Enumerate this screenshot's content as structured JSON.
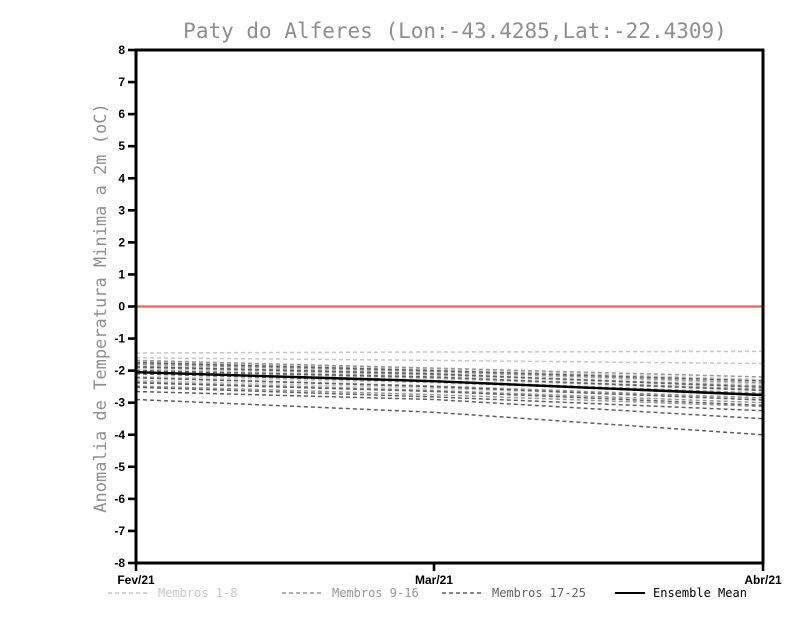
{
  "header": {
    "title": "Paty do Alferes (Lon:-43.4285,Lat:-22.4309)"
  },
  "colors": {
    "background": "#ffffff",
    "axis_frame": "#000000",
    "title_text": "#8e8e8e",
    "axis_label_text": "#909090",
    "tick_label_text": "#000000",
    "zero_line": "#f4615b",
    "members_1_8": "#c7c7c7",
    "members_9_16": "#969696",
    "members_17_25": "#5f5f5f",
    "ensemble_mean": "#000000"
  },
  "legend": {
    "items": [
      {
        "label": "Membros 1-8",
        "color": "#c7c7c7",
        "style": "dashed"
      },
      {
        "label": "Membros 9-16",
        "color": "#969696",
        "style": "dashed"
      },
      {
        "label": "Membros 17-25",
        "color": "#5f5f5f",
        "style": "dashed"
      },
      {
        "label": "Ensemble Mean",
        "color": "#000000",
        "style": "solid"
      }
    ]
  },
  "chart_data": {
    "type": "line",
    "title": "Paty do Alferes (Lon:-43.4285,Lat:-22.4309)",
    "xlabel": "",
    "ylabel": "Anomalia de Temperatura Minima a 2m (oC)",
    "x_tick_labels": [
      "Fev/21",
      "Mar/21",
      "Abr/21"
    ],
    "ylim": [
      -8,
      8
    ],
    "y_tick_step": 1,
    "grid": false,
    "legend_position": "bottom",
    "zero_line_y": 0,
    "zero_line_color": "#f4615b",
    "series": [
      {
        "name": "Membro 1",
        "group": "Membros 1-8",
        "values": [
          -1.45,
          -1.42,
          -1.4
        ]
      },
      {
        "name": "Membro 2",
        "group": "Membros 1-8",
        "values": [
          -1.6,
          -1.68,
          -1.78
        ]
      },
      {
        "name": "Membro 3",
        "group": "Membros 1-8",
        "values": [
          -1.72,
          -1.95,
          -2.28
        ]
      },
      {
        "name": "Membro 4",
        "group": "Membros 1-8",
        "values": [
          -1.85,
          -2.05,
          -2.42
        ]
      },
      {
        "name": "Membro 5",
        "group": "Membros 1-8",
        "values": [
          -1.95,
          -2.15,
          -2.52
        ]
      },
      {
        "name": "Membro 6",
        "group": "Membros 1-8",
        "values": [
          -2.05,
          -2.25,
          -2.62
        ]
      },
      {
        "name": "Membro 7",
        "group": "Membros 1-8",
        "values": [
          -2.18,
          -2.38,
          -2.72
        ]
      },
      {
        "name": "Membro 8",
        "group": "Membros 1-8",
        "values": [
          -2.3,
          -2.55,
          -2.88
        ]
      },
      {
        "name": "Membro 9",
        "group": "Membros 9-16",
        "values": [
          -1.68,
          -1.92,
          -2.2
        ]
      },
      {
        "name": "Membro 10",
        "group": "Membros 9-16",
        "values": [
          -1.8,
          -2.02,
          -2.38
        ]
      },
      {
        "name": "Membro 11",
        "group": "Membros 9-16",
        "values": [
          -1.9,
          -2.12,
          -2.48
        ]
      },
      {
        "name": "Membro 12",
        "group": "Membros 9-16",
        "values": [
          -2.0,
          -2.22,
          -2.58
        ]
      },
      {
        "name": "Membro 13",
        "group": "Membros 9-16",
        "values": [
          -2.1,
          -2.32,
          -2.7
        ]
      },
      {
        "name": "Membro 14",
        "group": "Membros 9-16",
        "values": [
          -2.22,
          -2.48,
          -2.85
        ]
      },
      {
        "name": "Membro 15",
        "group": "Membros 9-16",
        "values": [
          -2.35,
          -2.62,
          -3.0
        ]
      },
      {
        "name": "Membro 16",
        "group": "Membros 9-16",
        "values": [
          -2.48,
          -2.75,
          -3.12
        ]
      },
      {
        "name": "Membro 17",
        "group": "Membros 17-25",
        "values": [
          -1.75,
          -2.0,
          -2.32
        ]
      },
      {
        "name": "Membro 18",
        "group": "Membros 17-25",
        "values": [
          -1.88,
          -2.1,
          -2.52
        ]
      },
      {
        "name": "Membro 19",
        "group": "Membros 17-25",
        "values": [
          -2.0,
          -2.2,
          -2.62
        ]
      },
      {
        "name": "Membro 20",
        "group": "Membros 17-25",
        "values": [
          -2.1,
          -2.35,
          -2.78
        ]
      },
      {
        "name": "Membro 21",
        "group": "Membros 17-25",
        "values": [
          -2.22,
          -2.5,
          -2.92
        ]
      },
      {
        "name": "Membro 22",
        "group": "Membros 17-25",
        "values": [
          -2.38,
          -2.65,
          -3.08
        ]
      },
      {
        "name": "Membro 23",
        "group": "Membros 17-25",
        "values": [
          -2.52,
          -2.82,
          -3.25
        ]
      },
      {
        "name": "Membro 24",
        "group": "Membros 17-25",
        "values": [
          -2.65,
          -2.9,
          -3.5
        ]
      },
      {
        "name": "Membro 25",
        "group": "Membros 17-25",
        "values": [
          -2.9,
          -3.3,
          -4.0
        ]
      }
    ],
    "ensemble_mean": {
      "name": "Ensemble Mean",
      "color": "#000000",
      "values": [
        -2.05,
        -2.33,
        -2.76
      ]
    }
  }
}
